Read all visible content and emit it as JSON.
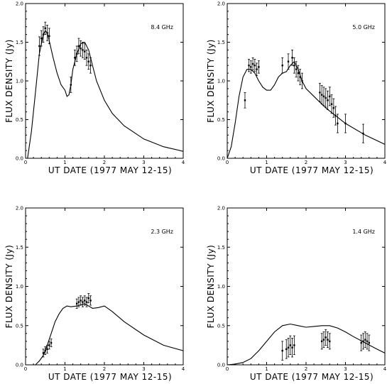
{
  "chart_data": [
    {
      "type": "line",
      "freq_label": "8.4 GHz",
      "xlabel": "UT DATE (1977 MAY 12-15)",
      "ylabel": "FLUX DENSITY (Jy)",
      "xlim": [
        0,
        4
      ],
      "ylim": [
        0,
        2
      ],
      "x_ticks": [
        "0",
        "1",
        "2",
        "3",
        "4"
      ],
      "y_ticks": [
        "0.0",
        "0.5",
        "1.0",
        "1.5",
        "2.0"
      ],
      "model_curve": {
        "x": [
          0.05,
          0.15,
          0.25,
          0.35,
          0.45,
          0.5,
          0.55,
          0.6,
          0.7,
          0.8,
          0.9,
          1.0,
          1.05,
          1.1,
          1.15,
          1.2,
          1.3,
          1.4,
          1.5,
          1.6,
          1.7,
          1.8,
          2.0,
          2.2,
          2.5,
          3.0,
          3.5,
          4.0
        ],
        "y": [
          0.0,
          0.35,
          0.85,
          1.35,
          1.6,
          1.65,
          1.62,
          1.52,
          1.3,
          1.1,
          0.95,
          0.88,
          0.8,
          0.82,
          0.95,
          1.15,
          1.35,
          1.48,
          1.5,
          1.4,
          1.2,
          1.0,
          0.75,
          0.58,
          0.42,
          0.25,
          0.15,
          0.09
        ]
      },
      "observations": {
        "x": [
          0.35,
          0.4,
          0.45,
          0.5,
          0.55,
          0.6,
          1.15,
          1.25,
          1.3,
          1.35,
          1.4,
          1.45,
          1.5,
          1.55,
          1.6,
          1.65
        ],
        "y": [
          1.45,
          1.55,
          1.6,
          1.68,
          1.62,
          1.58,
          0.95,
          1.3,
          1.35,
          1.45,
          1.42,
          1.4,
          1.38,
          1.3,
          1.25,
          1.2
        ],
        "err": [
          0.12,
          0.1,
          0.1,
          0.08,
          0.1,
          0.1,
          0.1,
          0.1,
          0.1,
          0.1,
          0.1,
          0.1,
          0.1,
          0.1,
          0.1,
          0.1
        ]
      }
    },
    {
      "type": "line",
      "freq_label": "5.0 GHz",
      "xlabel": "UT DATE (1977 MAY 12-15)",
      "ylabel": "FLUX DENSITY (Jy)",
      "xlim": [
        0,
        4
      ],
      "ylim": [
        0,
        2
      ],
      "x_ticks": [
        "0",
        "1",
        "2",
        "3",
        "4"
      ],
      "y_ticks": [
        "0.0",
        "0.5",
        "1.0",
        "1.5",
        "2.0"
      ],
      "model_curve": {
        "x": [
          0.0,
          0.1,
          0.2,
          0.3,
          0.4,
          0.5,
          0.6,
          0.7,
          0.8,
          0.9,
          1.0,
          1.1,
          1.2,
          1.3,
          1.4,
          1.5,
          1.6,
          1.7,
          1.8,
          1.9,
          2.0,
          2.2,
          2.5,
          3.0,
          3.5,
          4.0
        ],
        "y": [
          0.0,
          0.15,
          0.45,
          0.8,
          1.05,
          1.15,
          1.15,
          1.1,
          1.0,
          0.92,
          0.88,
          0.88,
          0.95,
          1.05,
          1.1,
          1.12,
          1.2,
          1.25,
          1.15,
          1.0,
          0.9,
          0.8,
          0.65,
          0.45,
          0.3,
          0.18
        ]
      },
      "observations": {
        "x": [
          0.45,
          0.55,
          0.6,
          0.65,
          0.7,
          0.75,
          0.8,
          1.4,
          1.55,
          1.65,
          1.7,
          1.75,
          1.8,
          1.85,
          1.9,
          2.35,
          2.4,
          2.45,
          2.5,
          2.55,
          2.6,
          2.65,
          2.7,
          2.75,
          2.8,
          3.0,
          3.45
        ],
        "y": [
          0.75,
          1.2,
          1.18,
          1.22,
          1.2,
          1.15,
          1.18,
          1.2,
          1.25,
          1.3,
          1.2,
          1.15,
          1.1,
          1.05,
          1.0,
          0.85,
          0.82,
          0.8,
          0.78,
          0.75,
          0.8,
          0.7,
          0.65,
          0.55,
          0.45,
          0.45,
          0.32
        ],
        "err": [
          0.1,
          0.08,
          0.08,
          0.08,
          0.08,
          0.08,
          0.08,
          0.1,
          0.1,
          0.1,
          0.1,
          0.1,
          0.1,
          0.1,
          0.1,
          0.12,
          0.12,
          0.12,
          0.12,
          0.12,
          0.12,
          0.12,
          0.12,
          0.12,
          0.12,
          0.12,
          0.12
        ]
      }
    },
    {
      "type": "line",
      "freq_label": "2.3 GHz",
      "xlabel": "UT DATE (1977 MAY 12-15)",
      "ylabel": "FLUX DENSITY (Jy)",
      "xlim": [
        0,
        4
      ],
      "ylim": [
        0,
        2
      ],
      "x_ticks": [
        "0",
        "1",
        "2",
        "3",
        "4"
      ],
      "y_ticks": [
        "0.0",
        "0.5",
        "1.0",
        "1.5",
        "2.0"
      ],
      "model_curve": {
        "x": [
          0.25,
          0.35,
          0.45,
          0.55,
          0.65,
          0.75,
          0.85,
          0.95,
          1.05,
          1.15,
          1.3,
          1.5,
          1.7,
          1.85,
          2.0,
          2.2,
          2.5,
          3.0,
          3.5,
          4.0
        ],
        "y": [
          0.0,
          0.05,
          0.12,
          0.25,
          0.4,
          0.55,
          0.65,
          0.72,
          0.75,
          0.74,
          0.75,
          0.78,
          0.72,
          0.73,
          0.75,
          0.68,
          0.55,
          0.38,
          0.25,
          0.18
        ]
      },
      "observations": {
        "x": [
          0.45,
          0.5,
          0.55,
          0.6,
          0.65,
          1.3,
          1.35,
          1.4,
          1.45,
          1.5,
          1.55,
          1.6,
          1.65
        ],
        "y": [
          0.15,
          0.18,
          0.2,
          0.25,
          0.28,
          0.78,
          0.8,
          0.82,
          0.8,
          0.82,
          0.8,
          0.85,
          0.82
        ],
        "err": [
          0.05,
          0.05,
          0.05,
          0.05,
          0.05,
          0.06,
          0.06,
          0.06,
          0.06,
          0.06,
          0.06,
          0.06,
          0.06
        ]
      }
    },
    {
      "type": "line",
      "freq_label": "1.4 GHz",
      "xlabel": "UT DATE (1977 MAY 12-15)",
      "ylabel": "FLUX DENSITY (Jy)",
      "xlim": [
        0,
        4
      ],
      "ylim": [
        0,
        2
      ],
      "x_ticks": [
        "0",
        "1",
        "2",
        "3",
        "4"
      ],
      "y_ticks": [
        "0.0",
        "0.5",
        "1.0",
        "1.5",
        "2.0"
      ],
      "model_curve": {
        "x": [
          0.0,
          0.2,
          0.4,
          0.6,
          0.8,
          1.0,
          1.2,
          1.4,
          1.6,
          1.8,
          2.0,
          2.2,
          2.4,
          2.6,
          2.8,
          3.0,
          3.2,
          3.5,
          3.8,
          4.0
        ],
        "y": [
          0.0,
          0.01,
          0.03,
          0.08,
          0.18,
          0.3,
          0.42,
          0.5,
          0.52,
          0.5,
          0.48,
          0.49,
          0.5,
          0.5,
          0.47,
          0.42,
          0.36,
          0.28,
          0.2,
          0.15
        ]
      },
      "observations": {
        "x": [
          1.4,
          1.5,
          1.55,
          1.6,
          1.65,
          1.7,
          2.4,
          2.45,
          2.5,
          2.55,
          2.6,
          3.4,
          3.45,
          3.5,
          3.55,
          3.6
        ],
        "y": [
          0.18,
          0.2,
          0.22,
          0.25,
          0.22,
          0.25,
          0.3,
          0.32,
          0.35,
          0.32,
          0.3,
          0.28,
          0.3,
          0.32,
          0.3,
          0.28
        ],
        "err": [
          0.12,
          0.12,
          0.12,
          0.12,
          0.12,
          0.12,
          0.1,
          0.1,
          0.1,
          0.1,
          0.1,
          0.1,
          0.1,
          0.1,
          0.1,
          0.1
        ]
      }
    }
  ]
}
